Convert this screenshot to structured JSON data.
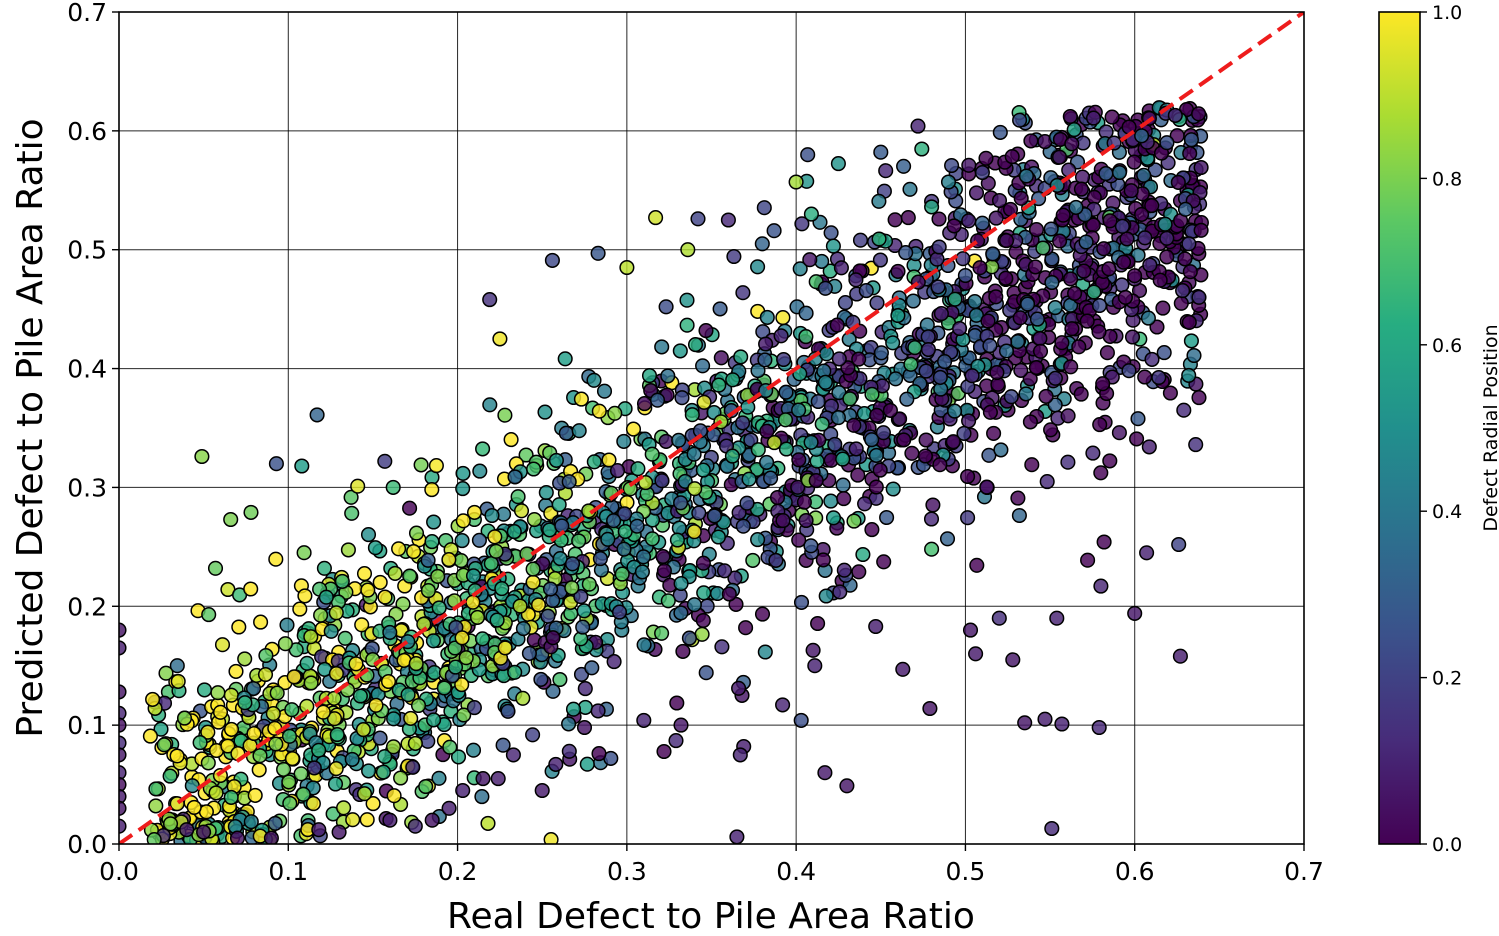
{
  "chart_data": {
    "type": "scatter",
    "title": "",
    "xlabel": "Real Defect to Pile Area Ratio",
    "ylabel": "Predicted Defect to Pile Area Ratio",
    "xlim": [
      0.0,
      0.7
    ],
    "ylim": [
      0.0,
      0.7
    ],
    "xticks": [
      "0.0",
      "0.1",
      "0.2",
      "0.3",
      "0.4",
      "0.5",
      "0.6",
      "0.7"
    ],
    "yticks": [
      "0.0",
      "0.1",
      "0.2",
      "0.3",
      "0.4",
      "0.5",
      "0.6",
      "0.7"
    ],
    "grid": true,
    "colorbar": {
      "label": "Defect Radial Position",
      "range": [
        0.0,
        1.0
      ],
      "ticks": [
        "0.0",
        "0.2",
        "0.4",
        "0.6",
        "0.8",
        "1.0"
      ],
      "colormap": "viridis"
    },
    "reference_line": {
      "type": "y=x",
      "color": "#ee1c1c",
      "style": "dashed",
      "from": [
        0.0,
        0.0
      ],
      "to": [
        0.7,
        0.7
      ]
    },
    "series": [
      {
        "encoding": [
          "x",
          "y",
          "radial_position"
        ],
        "points": [
          [
            0.0,
            0.18,
            0.05
          ],
          [
            0.0,
            0.165,
            0.08
          ],
          [
            0.0,
            0.128,
            0.05
          ],
          [
            0.0,
            0.11,
            0.1
          ],
          [
            0.0,
            0.1,
            0.04
          ],
          [
            0.0,
            0.085,
            0.12
          ],
          [
            0.0,
            0.075,
            0.06
          ],
          [
            0.0,
            0.06,
            0.09
          ],
          [
            0.0,
            0.05,
            0.03
          ],
          [
            0.0,
            0.04,
            0.07
          ],
          [
            0.0,
            0.03,
            0.05
          ],
          [
            0.0,
            0.015,
            0.08
          ],
          [
            0.049,
            0.326,
            0.82
          ],
          [
            0.066,
            0.273,
            0.8
          ],
          [
            0.078,
            0.279,
            0.78
          ],
          [
            0.057,
            0.232,
            0.76
          ],
          [
            0.053,
            0.193,
            0.74
          ],
          [
            0.117,
            0.361,
            0.32
          ],
          [
            0.093,
            0.32,
            0.25
          ],
          [
            0.108,
            0.318,
            0.55
          ],
          [
            0.157,
            0.322,
            0.18
          ],
          [
            0.162,
            0.3,
            0.68
          ],
          [
            0.141,
            0.301,
            0.95
          ],
          [
            0.219,
            0.458,
            0.14
          ],
          [
            0.225,
            0.425,
            0.98
          ],
          [
            0.203,
            0.299,
            0.52
          ],
          [
            0.256,
            0.491,
            0.22
          ],
          [
            0.283,
            0.497,
            0.27
          ],
          [
            0.3,
            0.485,
            0.9
          ],
          [
            0.317,
            0.527,
            0.93
          ],
          [
            0.342,
            0.526,
            0.2
          ],
          [
            0.336,
            0.5,
            0.88
          ],
          [
            0.36,
            0.525,
            0.11
          ],
          [
            0.387,
            0.516,
            0.26
          ],
          [
            0.38,
            0.505,
            0.32
          ],
          [
            0.409,
            0.53,
            0.62
          ],
          [
            0.4,
            0.557,
            0.86
          ],
          [
            0.422,
            0.503,
            0.52
          ],
          [
            0.438,
            0.508,
            0.18
          ],
          [
            0.449,
            0.509,
            0.64
          ],
          [
            0.472,
            0.604,
            0.1
          ],
          [
            0.48,
            0.536,
            0.6
          ],
          [
            0.49,
            0.557,
            0.43
          ],
          [
            0.502,
            0.571,
            0.06
          ],
          [
            0.51,
            0.565,
            0.19
          ],
          [
            0.532,
            0.609,
            0.22
          ],
          [
            0.536,
            0.562,
            0.38
          ],
          [
            0.561,
            0.567,
            0.09
          ],
          [
            0.583,
            0.564,
            0.3
          ],
          [
            0.591,
            0.565,
            0.4
          ],
          [
            0.606,
            0.51,
            0.12
          ],
          [
            0.624,
            0.613,
            0.11
          ],
          [
            0.619,
            0.59,
            0.25
          ],
          [
            0.63,
            0.534,
            0.3
          ],
          [
            0.632,
            0.505,
            0.16
          ],
          [
            0.638,
            0.46,
            0.15
          ],
          [
            0.635,
            0.411,
            0.35
          ],
          [
            0.629,
            0.365,
            0.12
          ],
          [
            0.636,
            0.336,
            0.14
          ],
          [
            0.626,
            0.252,
            0.2
          ],
          [
            0.627,
            0.158,
            0.08
          ],
          [
            0.6,
            0.194,
            0.06
          ],
          [
            0.607,
            0.245,
            0.09
          ],
          [
            0.58,
            0.217,
            0.1
          ],
          [
            0.554,
            0.19,
            0.09
          ],
          [
            0.528,
            0.155,
            0.06
          ],
          [
            0.52,
            0.19,
            0.13
          ],
          [
            0.506,
            0.16,
            0.07
          ],
          [
            0.503,
            0.18,
            0.06
          ],
          [
            0.547,
            0.105,
            0.08
          ],
          [
            0.551,
            0.013,
            0.12
          ],
          [
            0.557,
            0.101,
            0.09
          ],
          [
            0.579,
            0.098,
            0.11
          ],
          [
            0.535,
            0.102,
            0.06
          ],
          [
            0.479,
            0.114,
            0.05
          ],
          [
            0.48,
            0.248,
            0.7
          ],
          [
            0.463,
            0.147,
            0.07
          ],
          [
            0.447,
            0.183,
            0.08
          ],
          [
            0.43,
            0.049,
            0.06
          ],
          [
            0.417,
            0.06,
            0.07
          ],
          [
            0.411,
            0.15,
            0.09
          ],
          [
            0.41,
            0.163,
            0.06
          ],
          [
            0.403,
            0.104,
            0.24
          ],
          [
            0.392,
            0.117,
            0.1
          ],
          [
            0.365,
            0.006,
            0.09
          ],
          [
            0.368,
            0.125,
            0.05
          ],
          [
            0.366,
            0.131,
            0.07
          ],
          [
            0.369,
            0.082,
            0.08
          ],
          [
            0.367,
            0.075,
            0.1
          ],
          [
            0.332,
            0.1,
            0.06
          ],
          [
            0.329,
            0.087,
            0.12
          ],
          [
            0.31,
            0.104,
            0.1
          ],
          [
            0.283,
            0.112,
            0.11
          ],
          [
            0.275,
            0.098,
            0.05
          ],
          [
            0.266,
            0.078,
            0.13
          ],
          [
            0.258,
            0.067,
            0.09
          ],
          [
            0.25,
            0.045,
            0.07
          ],
          [
            0.233,
            0.075,
            0.1
          ],
          [
            0.224,
            0.055,
            0.08
          ],
          [
            0.215,
            0.055,
            0.06
          ],
          [
            0.203,
            0.045,
            0.09
          ],
          [
            0.195,
            0.03,
            0.08
          ],
          [
            0.185,
            0.02,
            0.05
          ],
          [
            0.175,
            0.015,
            0.12
          ],
          [
            0.16,
            0.02,
            0.08
          ],
          [
            0.13,
            0.01,
            0.06
          ],
          [
            0.118,
            0.012,
            0.07
          ],
          [
            0.09,
            0.005,
            0.05
          ],
          [
            0.07,
            0.005,
            0.04
          ],
          [
            0.05,
            0.01,
            0.06
          ],
          [
            0.04,
            0.012,
            0.08
          ]
        ]
      }
    ],
    "cloud": {
      "count": 2400,
      "x_range": [
        0.005,
        0.64
      ],
      "center_line": "y ≈ 0.82x + 0.02",
      "spread": 0.055,
      "color_trend": "high radial position (yellow) at small x, low radial position (purple) at large x"
    }
  }
}
